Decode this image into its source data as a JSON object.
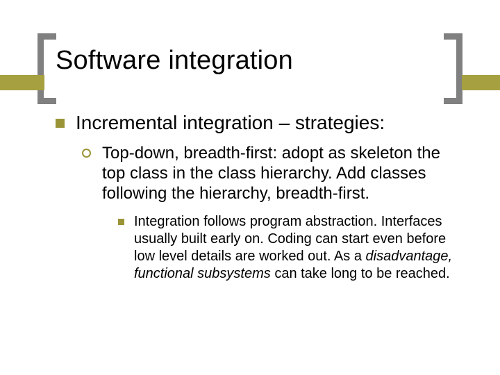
{
  "colors": {
    "bracket": "#808080",
    "band": "#a6a040",
    "squareBullet": "#9a9436",
    "ringBullet": "#9a9436",
    "text": "#000000",
    "background": "#ffffff"
  },
  "title": "Software integration",
  "level1": {
    "text": "Incremental integration – strategies:"
  },
  "level2": {
    "text": "Top-down, breadth-first: adopt as skeleton the top class in the class hierarchy. Add classes following the hierarchy, breadth-first."
  },
  "level3": {
    "plain1": "Integration follows program abstraction. Interfaces usually built early on. Coding can start even before low level details are worked out. As a ",
    "italic": "disadvantage, functional subsystems",
    "plain2": " can take long to be reached."
  }
}
